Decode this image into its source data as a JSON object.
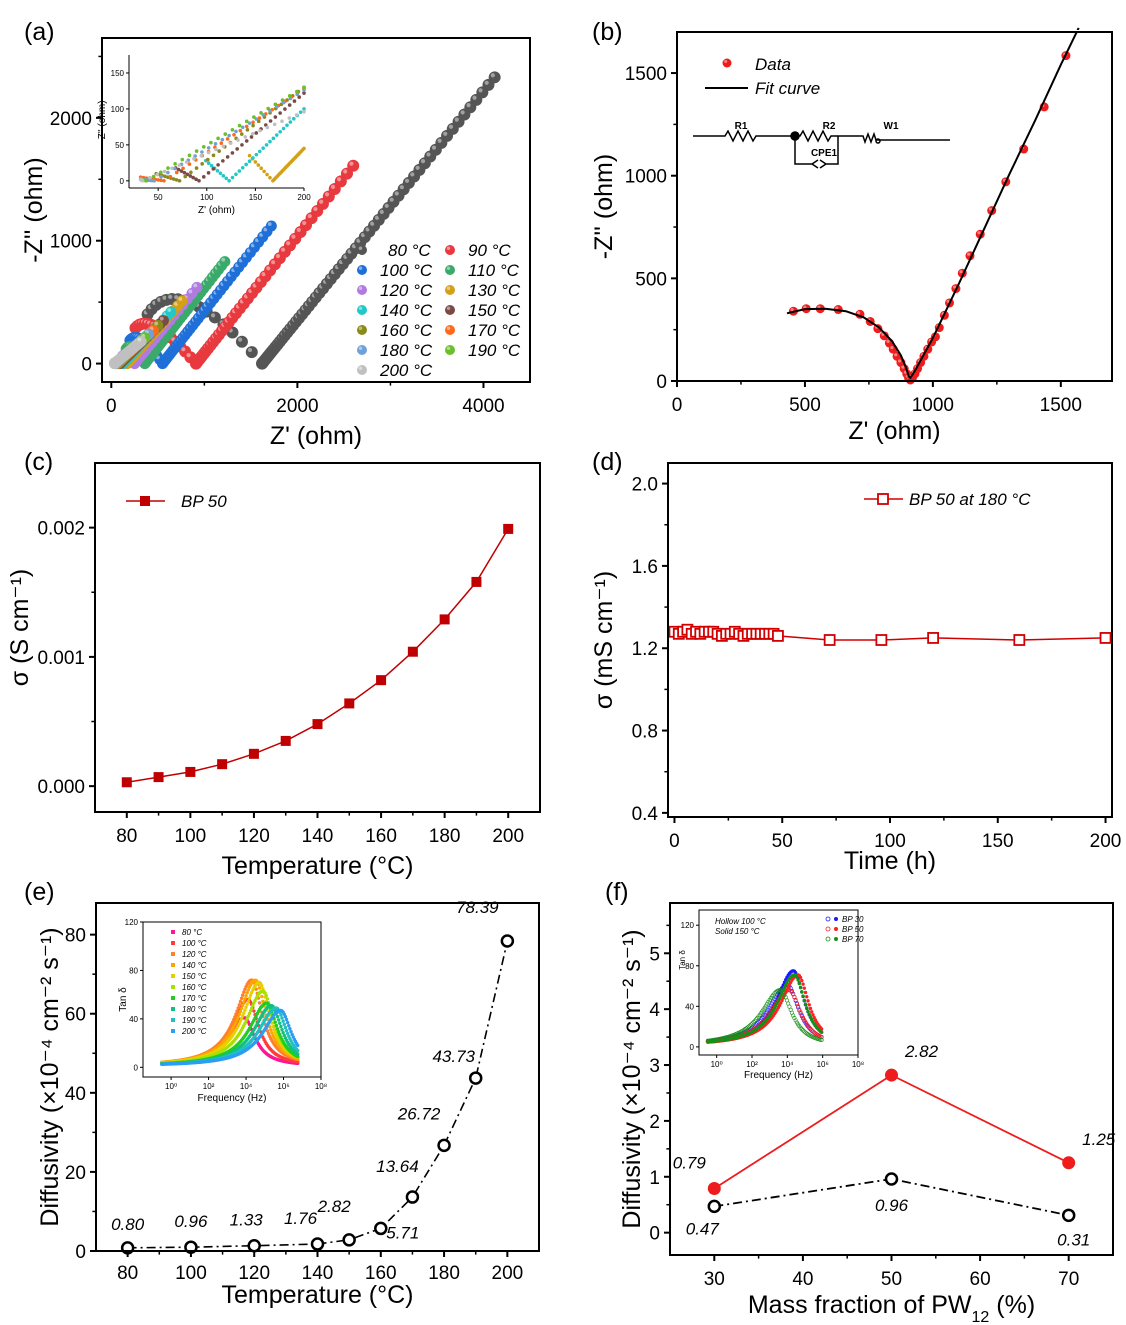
{
  "figure": {
    "panel_labels": [
      "(a)",
      "(b)",
      "(c)",
      "(d)",
      "(e)",
      "(f)"
    ]
  },
  "chart_data": [
    {
      "panel": "(a)",
      "type": "scatter",
      "title": "",
      "xlabel": "Z' (ohm)",
      "ylabel": "-Z'' (ohm)",
      "xlim": [
        -100,
        4500
      ],
      "ylim": [
        -150,
        2650
      ],
      "xticks": [
        0,
        2000,
        4000
      ],
      "yticks": [
        0,
        1000,
        2000
      ],
      "legend_position": "bottom-right",
      "series": [
        {
          "name": "80 °C",
          "color": "#555555",
          "arc_start": [
            390,
            400
          ],
          "arc_peak": [
            720,
            580
          ],
          "min_z": 1620,
          "end": [
            4120,
            2330
          ]
        },
        {
          "name": "90 °C",
          "color": "#e8393f",
          "arc_start": [
            260,
            290
          ],
          "arc_peak": [
            420,
            320
          ],
          "min_z": 910,
          "end": [
            2600,
            1610
          ]
        },
        {
          "name": "100 °C",
          "color": "#1f6fd8",
          "arc_start": [
            200,
            190
          ],
          "arc_peak": [
            300,
            210
          ],
          "min_z": 550,
          "end": [
            1720,
            1120
          ]
        },
        {
          "name": "110 °C",
          "color": "#3aaa6a",
          "arc_start": [
            160,
            120
          ],
          "arc_peak": [
            220,
            140
          ],
          "min_z": 360,
          "end": [
            1220,
            830
          ]
        },
        {
          "name": "120 °C",
          "color": "#b07be0",
          "arc_start": [
            120,
            60
          ],
          "arc_peak": [
            160,
            70
          ],
          "min_z": 250,
          "end": [
            920,
            620
          ]
        },
        {
          "name": "130 °C",
          "color": "#d4a017",
          "arc_start": [
            100,
            40
          ],
          "arc_peak": [
            130,
            45
          ],
          "min_z": 170,
          "end": [
            760,
            510
          ]
        },
        {
          "name": "140 °C",
          "color": "#22c7c7",
          "arc_start": [
            90,
            30
          ],
          "arc_peak": [
            110,
            30
          ],
          "min_z": 125,
          "end": [
            640,
            420
          ]
        },
        {
          "name": "150 °C",
          "color": "#7a4a45",
          "arc_start": [
            80,
            20
          ],
          "arc_peak": [
            90,
            20
          ],
          "min_z": 92,
          "end": [
            560,
            350
          ]
        },
        {
          "name": "160 °C",
          "color": "#8a8a1a",
          "arc_start": [
            70,
            15
          ],
          "arc_peak": [
            75,
            15
          ],
          "min_z": 72,
          "end": [
            500,
            310
          ]
        },
        {
          "name": "170 °C",
          "color": "#ff6a1a",
          "arc_start": [
            60,
            10
          ],
          "arc_peak": [
            62,
            10
          ],
          "min_z": 57,
          "end": [
            450,
            270
          ]
        },
        {
          "name": "180 °C",
          "color": "#6fa0d8",
          "arc_start": [
            50,
            8
          ],
          "arc_peak": [
            52,
            8
          ],
          "min_z": 46,
          "end": [
            400,
            240
          ]
        },
        {
          "name": "190 °C",
          "color": "#6abf2a",
          "arc_start": [
            40,
            5
          ],
          "arc_peak": [
            42,
            5
          ],
          "min_z": 38,
          "end": [
            360,
            210
          ]
        },
        {
          "name": "200 °C",
          "color": "#c0c0c0",
          "arc_start": [
            35,
            3
          ],
          "arc_peak": [
            36,
            3
          ],
          "min_z": 34,
          "end": [
            320,
            180
          ]
        }
      ],
      "inset": {
        "xlabel": "Z' (ohm)",
        "ylabel": "-Z'' (ohm)",
        "xlim": [
          20,
          200
        ],
        "ylim": [
          -10,
          175
        ],
        "xticks": [
          50,
          100,
          150,
          200
        ],
        "yticks": [
          0,
          50,
          100,
          150
        ],
        "minima": [
          {
            "name": "130 °C",
            "z": 168,
            "color": "#d4a017",
            "start_y": 35,
            "end_y": 45
          },
          {
            "name": "140 °C",
            "z": 123,
            "color": "#22c7c7",
            "start_y": 28,
            "end_y": 100
          },
          {
            "name": "150 °C",
            "z": 92,
            "color": "#7a4a45",
            "start_y": 18,
            "end_y": 122
          },
          {
            "name": "160 °C",
            "z": 72,
            "color": "#8a8a1a",
            "start_y": 10,
            "end_y": 130
          },
          {
            "name": "170 °C",
            "z": 56,
            "color": "#ff6a1a",
            "start_y": 5,
            "end_y": 128
          },
          {
            "name": "180 °C",
            "z": 46,
            "color": "#6fa0d8",
            "start_y": 2,
            "end_y": 126
          },
          {
            "name": "190 °C",
            "z": 38,
            "color": "#6abf2a",
            "start_y": 2,
            "end_y": 130
          },
          {
            "name": "200 °C",
            "z": 34,
            "color": "#c0c0c0",
            "start_y": 2,
            "end_y": 96
          }
        ]
      }
    },
    {
      "panel": "(b)",
      "type": "scatter",
      "xlabel": "Z' (ohm)",
      "ylabel": "-Z'' (ohm)",
      "xlim": [
        0,
        1700
      ],
      "ylim": [
        0,
        1700
      ],
      "xticks": [
        0,
        500,
        1000,
        1500
      ],
      "yticks": [
        0,
        500,
        1000,
        1500
      ],
      "legend": [
        "Data",
        "Fit curve"
      ],
      "legend_position": "top-left",
      "circuit_labels": [
        "R1",
        "R2",
        "CPE1",
        "W1"
      ],
      "data_points": [
        [
          455,
          340
        ],
        [
          505,
          352
        ],
        [
          560,
          352
        ],
        [
          630,
          348
        ],
        [
          715,
          325
        ],
        [
          755,
          290
        ],
        [
          785,
          255
        ],
        [
          810,
          220
        ],
        [
          830,
          185
        ],
        [
          845,
          155
        ],
        [
          860,
          120
        ],
        [
          875,
          90
        ],
        [
          888,
          60
        ],
        [
          898,
          35
        ],
        [
          905,
          15
        ],
        [
          912,
          5
        ],
        [
          920,
          15
        ],
        [
          930,
          35
        ],
        [
          940,
          60
        ],
        [
          952,
          90
        ],
        [
          965,
          120
        ],
        [
          980,
          155
        ],
        [
          995,
          190
        ],
        [
          1010,
          215
        ],
        [
          1025,
          260
        ],
        [
          1045,
          320
        ],
        [
          1065,
          380
        ],
        [
          1090,
          450
        ],
        [
          1115,
          525
        ],
        [
          1145,
          610
        ],
        [
          1185,
          715
        ],
        [
          1230,
          830
        ],
        [
          1285,
          970
        ],
        [
          1355,
          1130
        ],
        [
          1435,
          1335
        ],
        [
          1520,
          1585
        ]
      ],
      "fit_curve": [
        [
          430,
          330
        ],
        [
          500,
          350
        ],
        [
          580,
          352
        ],
        [
          660,
          340
        ],
        [
          730,
          310
        ],
        [
          790,
          260
        ],
        [
          840,
          195
        ],
        [
          875,
          125
        ],
        [
          895,
          65
        ],
        [
          905,
          25
        ],
        [
          912,
          15
        ],
        [
          930,
          50
        ],
        [
          1000,
          210
        ],
        [
          1100,
          470
        ],
        [
          1200,
          740
        ],
        [
          1300,
          1010
        ],
        [
          1400,
          1270
        ],
        [
          1500,
          1540
        ],
        [
          1570,
          1720
        ]
      ]
    },
    {
      "panel": "(c)",
      "type": "line",
      "xlabel": "Temperature (°C)",
      "ylabel": "σ (S cm⁻¹)",
      "xlim": [
        70,
        210
      ],
      "ylim": [
        -0.0002,
        0.0025
      ],
      "xticks": [
        80,
        100,
        120,
        140,
        160,
        180,
        200
      ],
      "yticks": [
        0.0,
        0.001,
        0.002
      ],
      "ytick_labels": [
        "0.000",
        "0.001",
        "0.002"
      ],
      "legend": [
        "BP 50"
      ],
      "legend_position": "top-left",
      "x": [
        80,
        90,
        100,
        110,
        120,
        130,
        140,
        150,
        160,
        170,
        180,
        190,
        200
      ],
      "series": [
        {
          "name": "BP 50",
          "color": "#c00000",
          "values": [
            3e-05,
            7e-05,
            0.00011,
            0.00017,
            0.00025,
            0.00035,
            0.00048,
            0.00064,
            0.00082,
            0.00104,
            0.00129,
            0.00158,
            0.00199
          ]
        }
      ]
    },
    {
      "panel": "(d)",
      "type": "line",
      "xlabel": "Time (h)",
      "ylabel": "σ (mS cm⁻¹)",
      "xlim": [
        -3,
        203
      ],
      "ylim": [
        0.38,
        2.1
      ],
      "xticks": [
        0,
        50,
        100,
        150,
        200
      ],
      "yticks": [
        0.4,
        0.8,
        1.2,
        1.6,
        2.0
      ],
      "ytick_labels": [
        "0.4",
        "0.8",
        "1.2",
        "1.6",
        "2.0"
      ],
      "legend": [
        "BP 50 at 180 °C"
      ],
      "legend_position": "top-right",
      "x": [
        0,
        2,
        4,
        6,
        8,
        10,
        12,
        14,
        16,
        18,
        20,
        22,
        24,
        26,
        28,
        30,
        32,
        34,
        36,
        38,
        40,
        42,
        44,
        46,
        48,
        72,
        96,
        120,
        160,
        200
      ],
      "series": [
        {
          "name": "BP 50 at 180 °C",
          "color": "#d00000",
          "values": [
            1.28,
            1.27,
            1.28,
            1.29,
            1.27,
            1.28,
            1.27,
            1.28,
            1.28,
            1.28,
            1.27,
            1.26,
            1.27,
            1.27,
            1.28,
            1.27,
            1.26,
            1.27,
            1.27,
            1.27,
            1.27,
            1.27,
            1.27,
            1.27,
            1.26,
            1.24,
            1.24,
            1.25,
            1.24,
            1.25
          ]
        }
      ]
    },
    {
      "panel": "(e)",
      "type": "line",
      "xlabel": "Temperature (°C)",
      "ylabel": "Diffusivity (×10⁻⁴ cm⁻² s⁻¹)",
      "xlim": [
        70,
        210
      ],
      "ylim": [
        0,
        88
      ],
      "xticks": [
        80,
        100,
        120,
        140,
        160,
        180,
        200
      ],
      "yticks": [
        0,
        20,
        40,
        60,
        80
      ],
      "x": [
        80,
        100,
        120,
        140,
        150,
        160,
        170,
        180,
        190,
        200
      ],
      "series": [
        {
          "name": "Diffusivity",
          "color": "#000000",
          "style": "dash-dot",
          "values": [
            0.8,
            0.96,
            1.33,
            1.76,
            2.82,
            5.71,
            13.64,
            26.72,
            43.73,
            78.39
          ],
          "labels": [
            "0.80",
            "0.96",
            "1.33",
            "1.76",
            "2.82",
            "5.71",
            "13.64",
            "26.72",
            "43.73",
            "78.39"
          ]
        }
      ],
      "inset": {
        "xlabel": "Frequency (Hz)",
        "ylabel": "Tan δ",
        "yticks": [
          0,
          40,
          80,
          120
        ],
        "xtick_labels": [
          "10⁰",
          "10²",
          "10⁴",
          "10⁶",
          "10⁸"
        ],
        "ylim": [
          0,
          120
        ],
        "log_xlim": [
          -1.5,
          8
        ],
        "legend": [
          {
            "name": "80 °C",
            "color": "#ff1493",
            "marker": "square",
            "peak_log_f": 3.9,
            "peak": 40
          },
          {
            "name": "100 °C",
            "color": "#ff3b3b",
            "marker": "circle",
            "peak_log_f": 4.1,
            "peak": 55
          },
          {
            "name": "120 °C",
            "color": "#ff7f2a",
            "marker": "triangle",
            "peak_log_f": 4.3,
            "peak": 71
          },
          {
            "name": "140 °C",
            "color": "#ffa500",
            "marker": "tri-down",
            "peak_log_f": 4.5,
            "peak": 71
          },
          {
            "name": "150 °C",
            "color": "#e8d000",
            "marker": "diamond",
            "peak_log_f": 4.7,
            "peak": 69
          },
          {
            "name": "160 °C",
            "color": "#a8e000",
            "marker": "tri-left",
            "peak_log_f": 4.9,
            "peak": 62
          },
          {
            "name": "170 °C",
            "color": "#22cc22",
            "marker": "tri-right",
            "peak_log_f": 5.1,
            "peak": 52
          },
          {
            "name": "180 °C",
            "color": "#10c080",
            "marker": "hexagon",
            "peak_log_f": 5.35,
            "peak": 50
          },
          {
            "name": "190 °C",
            "color": "#20c0c0",
            "marker": "star",
            "peak_log_f": 5.6,
            "peak": 48
          },
          {
            "name": "200 °C",
            "color": "#2a9df4",
            "marker": "circle",
            "peak_log_f": 5.85,
            "peak": 46
          }
        ]
      }
    },
    {
      "panel": "(f)",
      "type": "line",
      "xlabel": "Mass fraction of PW",
      "xlabel_sub": "12",
      "xlabel_suffix": " (%)",
      "ylabel": "Diffusivity (×10⁻⁴ cm⁻² s⁻¹)",
      "xlim": [
        25,
        75
      ],
      "ylim": [
        -0.4,
        5.9
      ],
      "xticks": [
        30,
        40,
        50,
        60,
        70
      ],
      "yticks": [
        0,
        1,
        2,
        3,
        4,
        5
      ],
      "x": [
        30,
        50,
        70
      ],
      "series": [
        {
          "name": "Solid 150 °C",
          "color": "#ee1c1c",
          "style": "solid",
          "marker": "filled-circle",
          "values": [
            0.79,
            2.82,
            1.25
          ],
          "labels": [
            "0.79",
            "2.82",
            "1.25"
          ]
        },
        {
          "name": "Hollow 100 °C",
          "color": "#000000",
          "style": "dash-dot",
          "marker": "open-circle",
          "values": [
            0.47,
            0.96,
            0.31
          ],
          "labels": [
            "0.47",
            "0.96",
            "0.31"
          ]
        }
      ],
      "inset": {
        "xlabel": "Frequency (Hz)",
        "ylabel": "Tan δ",
        "yticks": [
          0,
          40,
          80,
          120
        ],
        "xtick_labels": [
          "10⁰",
          "10²",
          "10⁴",
          "10⁶",
          "10⁸"
        ],
        "note_lines": [
          "Hollow 100 °C",
          "Solid   150 °C"
        ],
        "legend": [
          {
            "name": "BP 30",
            "color": "#1a1aff",
            "hollow_peak_log_f": 4.0,
            "hollow_peak": 60,
            "solid_peak_log_f": 4.35,
            "solid_peak": 74
          },
          {
            "name": "BP 50",
            "color": "#ff2020",
            "hollow_peak_log_f": 4.1,
            "hollow_peak": 55,
            "solid_peak_log_f": 4.6,
            "solid_peak": 70
          },
          {
            "name": "BP 70",
            "color": "#189018",
            "hollow_peak_log_f": 3.6,
            "hollow_peak": 55,
            "solid_peak_log_f": 4.4,
            "solid_peak": 70
          }
        ]
      }
    }
  ]
}
